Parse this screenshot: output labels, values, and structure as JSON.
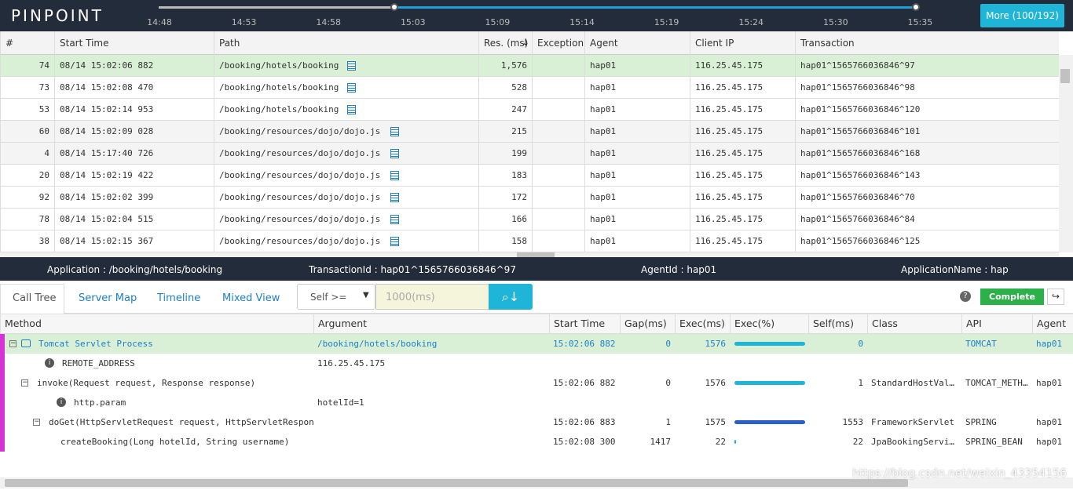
{
  "header": {
    "logo": "PINPOINT",
    "ticks": [
      "14:48",
      "14:53",
      "14:58",
      "15:03",
      "15:09",
      "15:14",
      "15:19",
      "15:24",
      "15:30",
      "15:35"
    ],
    "more_button": "More (100/192)"
  },
  "table": {
    "columns": [
      "#",
      "Start Time",
      "Path",
      "Res. (ms)",
      "Exception",
      "Agent",
      "Client IP",
      "Transaction"
    ],
    "rows": [
      [
        "74",
        "08/14 15:02:06 882",
        "/booking/hotels/booking",
        "1,576",
        "",
        "hap01",
        "116.25.45.175",
        "hap01^1565766036846^97"
      ],
      [
        "73",
        "08/14 15:02:08 470",
        "/booking/hotels/booking",
        "528",
        "",
        "hap01",
        "116.25.45.175",
        "hap01^1565766036846^98"
      ],
      [
        "53",
        "08/14 15:02:14 953",
        "/booking/hotels/booking",
        "247",
        "",
        "hap01",
        "116.25.45.175",
        "hap01^1565766036846^120"
      ],
      [
        "60",
        "08/14 15:02:09 028",
        "/booking/resources/dojo/dojo.js",
        "215",
        "",
        "hap01",
        "116.25.45.175",
        "hap01^1565766036846^101"
      ],
      [
        "4",
        "08/14 15:17:40 726",
        "/booking/resources/dojo/dojo.js",
        "199",
        "",
        "hap01",
        "116.25.45.175",
        "hap01^1565766036846^168"
      ],
      [
        "20",
        "08/14 15:02:19 422",
        "/booking/resources/dojo/dojo.js",
        "183",
        "",
        "hap01",
        "116.25.45.175",
        "hap01^1565766036846^143"
      ],
      [
        "92",
        "08/14 15:02:02 399",
        "/booking/resources/dojo/dojo.js",
        "172",
        "",
        "hap01",
        "116.25.45.175",
        "hap01^1565766036846^70"
      ],
      [
        "78",
        "08/14 15:02:04 515",
        "/booking/resources/dojo/dojo.js",
        "166",
        "",
        "hap01",
        "116.25.45.175",
        "hap01^1565766036846^84"
      ],
      [
        "38",
        "08/14 15:02:15 367",
        "/booking/resources/dojo/dojo.js",
        "158",
        "",
        "hap01",
        "116.25.45.175",
        "hap01^1565766036846^125"
      ]
    ]
  },
  "info": [
    "Application : /booking/hotels/booking",
    "TransactionId : hap01^1565766036846^97",
    "AgentId : hap01",
    "ApplicationName : hap"
  ],
  "tabs": [
    "Call Tree",
    "Server Map",
    "Timeline",
    "Mixed View"
  ],
  "filter": {
    "select": "Self >=",
    "placeholder": "1000(ms)",
    "complete": "Complete"
  },
  "call_tree": {
    "columns": [
      "Method",
      "Argument",
      "Start Time",
      "Gap(ms)",
      "Exec(ms)",
      "Exec(%)",
      "Self(ms)",
      "Class",
      "API",
      "Agent"
    ],
    "rows": [
      [
        "Tomcat Servlet Process",
        "/booking/hotels/booking",
        "15:02:06 882",
        "0",
        "1576",
        null,
        "0",
        "",
        "TOMCAT",
        "hap01"
      ],
      [
        "REMOTE_ADDRESS",
        "116.25.45.175",
        "",
        "",
        "",
        null,
        "",
        "",
        "",
        ""
      ],
      [
        "invoke(Request request, Response response)",
        "",
        "15:02:06 882",
        "0",
        "1576",
        null,
        "1",
        "StandardHostVal…",
        "TOMCAT_METH…",
        "hap01"
      ],
      [
        "http.param",
        "hotelId=1",
        "",
        "",
        "",
        null,
        "",
        "",
        "",
        ""
      ],
      [
        "doGet(HttpServletRequest request, HttpServletRespons",
        "",
        "15:02:06 883",
        "1",
        "1575",
        null,
        "1553",
        "FrameworkServlet",
        "SPRING",
        "hap01"
      ],
      [
        "createBooking(Long hotelId, String username)",
        "",
        "15:02:08 300",
        "1417",
        "22",
        null,
        "22",
        "JpaBookingServi…",
        "SPRING_BEAN",
        "hap01"
      ]
    ],
    "exec_pct": [
      100,
      null,
      100,
      null,
      99.9,
      1.4
    ]
  },
  "watermark": "https://blog.csdn.net/weixin_43354156"
}
